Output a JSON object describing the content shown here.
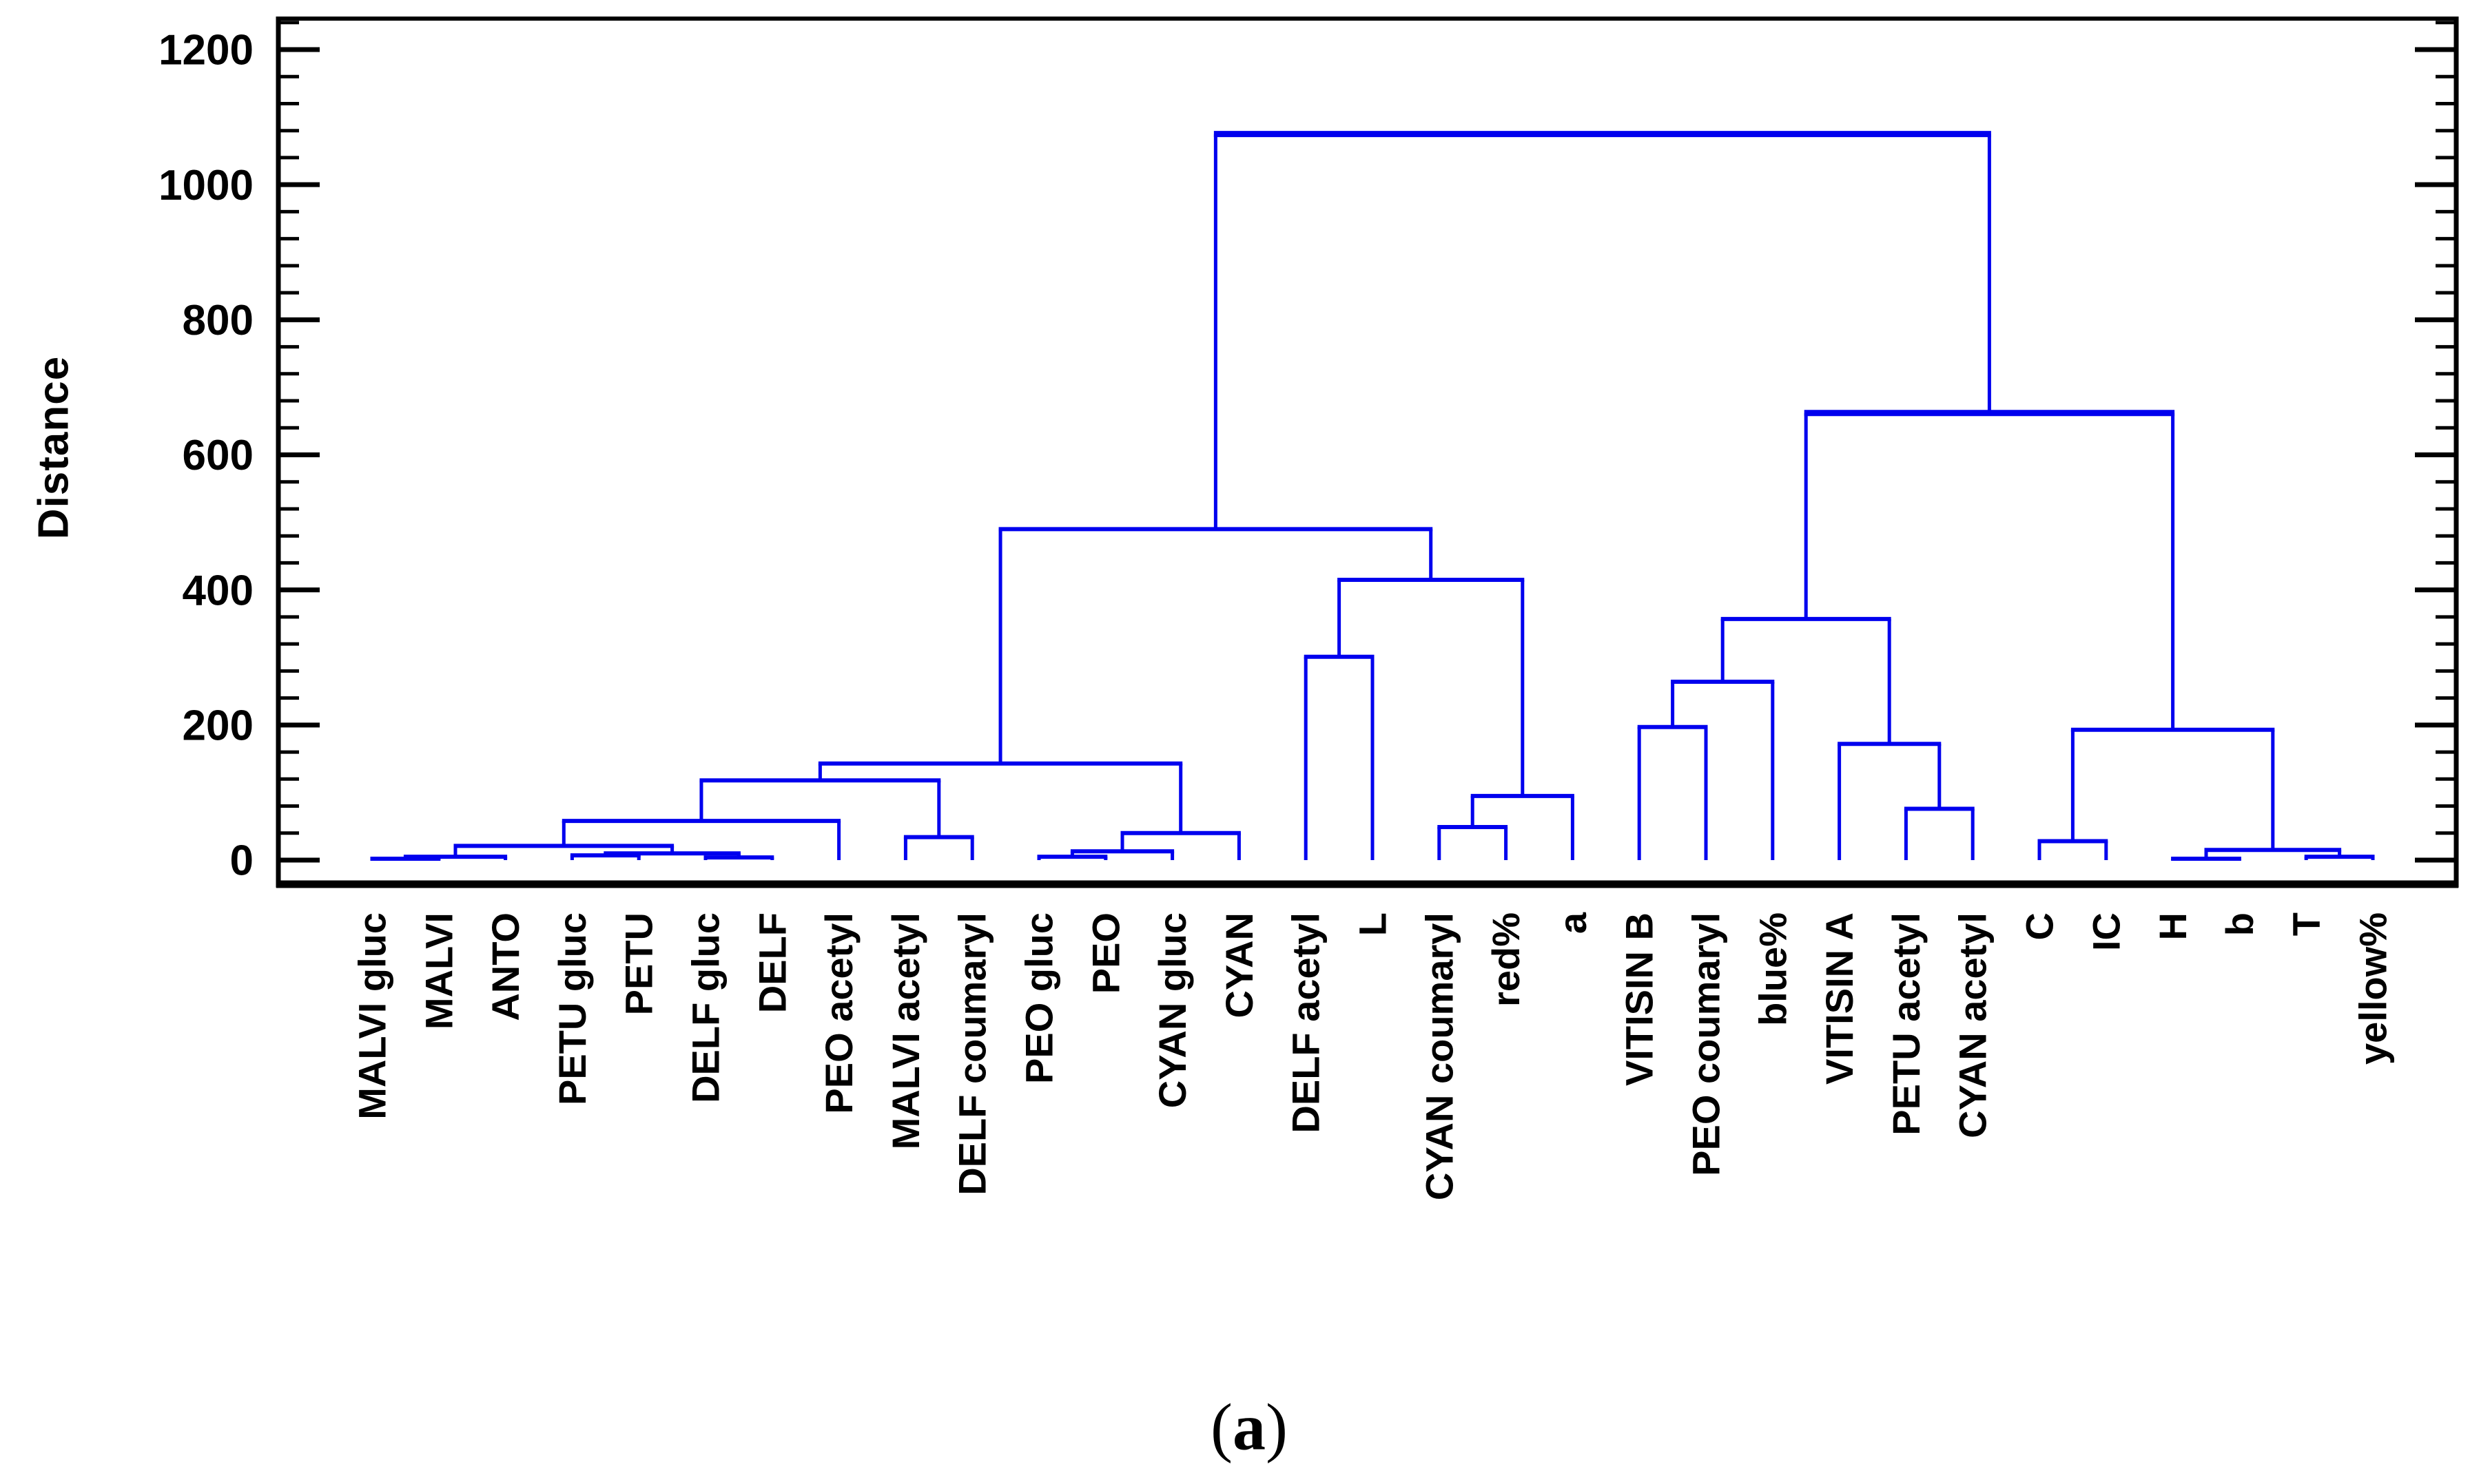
{
  "figure": {
    "ylabel": "Distance",
    "caption": {
      "open": "(",
      "letter": "a",
      "close": ")"
    },
    "colors": {
      "line": "#0000EE",
      "axis": "#000000",
      "background": "#FFFFFF"
    }
  },
  "chart_data": {
    "type": "dendrogram",
    "title": "",
    "xlabel": "",
    "ylabel": "Distance",
    "caption": "(a)",
    "ylim": [
      0,
      1200
    ],
    "yticks": [
      0,
      200,
      400,
      600,
      800,
      1000,
      1200
    ],
    "ytick_minor_step": 40,
    "grid": false,
    "legend": "none",
    "leaves": [
      "MALVI gluc",
      "MALVI",
      "ANTO",
      "PETU gluc",
      "PETU",
      "DELF gluc",
      "DELF",
      "PEO acetyl",
      "MALVI acetyl",
      "DELF coumaryl",
      "PEO gluc",
      "PEO",
      "CYAN gluc",
      "CYAN",
      "DELF acetyl",
      "L",
      "CYAN coumaryl",
      "red%",
      "a",
      "VITISIN B",
      "PEO coumaryl",
      "blue%",
      "VITISIN A",
      "PETU acetyl",
      "CYAN acetyl",
      "C",
      "IC",
      "H",
      "b",
      "T",
      "yellow%"
    ],
    "merges": [
      [
        "L0",
        "L1",
        2
      ],
      [
        "M0",
        "L2",
        5
      ],
      [
        "L3",
        "L4",
        7
      ],
      [
        "L5",
        "L6",
        4
      ],
      [
        "M2",
        "M3",
        10
      ],
      [
        "M1",
        "M4",
        21
      ],
      [
        "M5",
        "L7",
        58
      ],
      [
        "L8",
        "L9",
        34
      ],
      [
        "M6",
        "M7",
        118
      ],
      [
        "L10",
        "L11",
        5
      ],
      [
        "M9",
        "L12",
        13
      ],
      [
        "M10",
        "L13",
        40
      ],
      [
        "M8",
        "M11",
        143
      ],
      [
        "L14",
        "L15",
        301
      ],
      [
        "L16",
        "L17",
        49
      ],
      [
        "M14",
        "L18",
        95
      ],
      [
        "M13",
        "M15",
        415
      ],
      [
        "M12",
        "M16",
        490
      ],
      [
        "L19",
        "L20",
        197
      ],
      [
        "M18",
        "L21",
        264
      ],
      [
        "L23",
        "L24",
        76
      ],
      [
        "L22",
        "M20",
        172
      ],
      [
        "M19",
        "M21",
        357
      ],
      [
        "L25",
        "L26",
        28
      ],
      [
        "L27",
        "L28",
        2
      ],
      [
        "L29",
        "L30",
        5
      ],
      [
        "M24",
        "M25",
        15
      ],
      [
        "M23",
        "M26",
        193
      ],
      [
        "M22",
        "M27",
        662
      ],
      [
        "M17",
        "M28",
        1075
      ]
    ]
  }
}
